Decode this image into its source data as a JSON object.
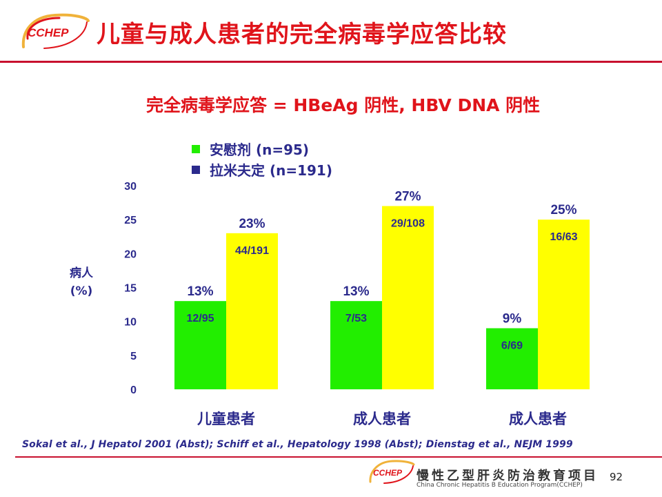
{
  "header": {
    "logo_text": "CCHEP",
    "title": "儿童与成人患者的完全病毒学应答比较"
  },
  "colors": {
    "accent_red": "#e0141b",
    "text_blue": "#2b2a8c",
    "placebo_green": "#22ee00",
    "lamivudine_yellow": "#ffff00"
  },
  "chart_data": {
    "type": "bar",
    "subtitle": "完全病毒学应答 = HBeAg 阴性, HBV DNA 阴性",
    "ylabel_line1": "病人",
    "ylabel_line2": "(%)",
    "ylim": [
      0,
      30
    ],
    "yticks": [
      "0",
      "5",
      "10",
      "15",
      "20",
      "25",
      "30"
    ],
    "grid": false,
    "legend_position": "top-left",
    "categories": [
      "儿童患者",
      "成人患者",
      "成人患者"
    ],
    "series": [
      {
        "name": "安慰剂 (n=95)",
        "legend_square": "■",
        "color": "#22ee00",
        "values": [
          13,
          13,
          9
        ],
        "labels": [
          "13%",
          "13%",
          "9%"
        ],
        "fractions": [
          "12/95",
          "7/53",
          "6/69"
        ]
      },
      {
        "name": "拉米夫定  (n=191)",
        "legend_square": "■",
        "color": "#ffff00",
        "values": [
          23,
          27,
          25
        ],
        "labels": [
          "23%",
          "27%",
          "25%"
        ],
        "fractions": [
          "44/191",
          "29/108",
          "16/63"
        ]
      }
    ]
  },
  "references": "Sokal et al., J Hepatol 2001 (Abst);  Schiff et al., Hepatology 1998 (Abst); Dienstag et al., NEJM 1999",
  "footer": {
    "logo_text": "CCHEP",
    "program_cn": "慢性乙型肝炎防治教育项目",
    "program_en": "China Chronic Hepatitis B Education Program(CCHEP)",
    "page_number": "92"
  }
}
